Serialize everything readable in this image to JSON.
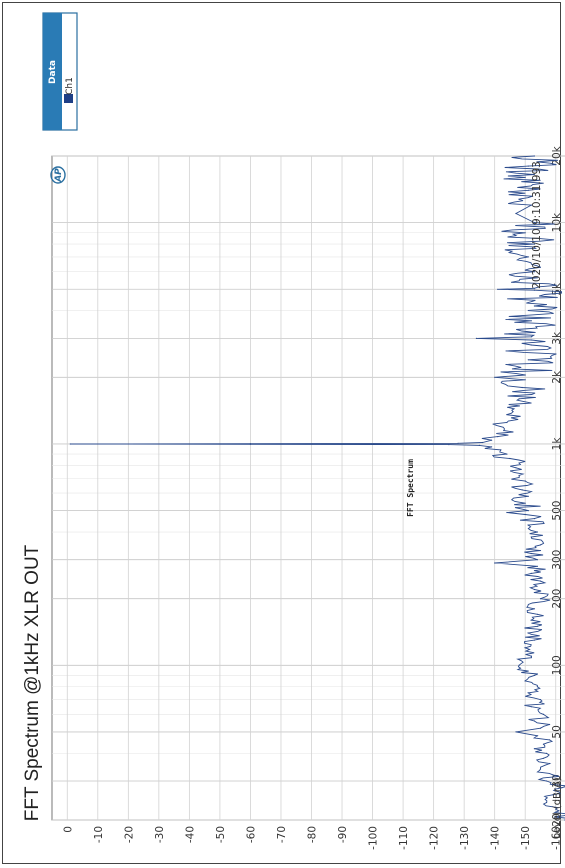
{
  "chart_data": {
    "type": "line",
    "title": "FFT Spectrum @1kHz XLR OUT",
    "subtitle": "FFT Spectrum",
    "timestamp": "2020/10/10 9:10:31.993",
    "logo": "AP",
    "ylabel": "Level (dBrA)",
    "xlabel": "",
    "x_scale": "log",
    "xlim": [
      20,
      20000
    ],
    "ylim": [
      -165,
      5
    ],
    "grid": true,
    "orientation": "rotated 90 degrees clockwise",
    "x_ticks": [
      {
        "v": 20,
        "label": "20"
      },
      {
        "v": 30,
        "label": "30"
      },
      {
        "v": 50,
        "label": "50"
      },
      {
        "v": 100,
        "label": "100"
      },
      {
        "v": 200,
        "label": "200"
      },
      {
        "v": 300,
        "label": "300"
      },
      {
        "v": 500,
        "label": "500"
      },
      {
        "v": 1000,
        "label": "1k"
      },
      {
        "v": 2000,
        "label": "2k"
      },
      {
        "v": 3000,
        "label": "3k"
      },
      {
        "v": 5000,
        "label": "5k"
      },
      {
        "v": 10000,
        "label": "10k"
      },
      {
        "v": 20000,
        "label": "20k"
      }
    ],
    "y_ticks": [
      {
        "v": 0,
        "label": "0"
      },
      {
        "v": -10,
        "label": "-10"
      },
      {
        "v": -20,
        "label": "-20"
      },
      {
        "v": -30,
        "label": "-30"
      },
      {
        "v": -40,
        "label": "-40"
      },
      {
        "v": -50,
        "label": "-50"
      },
      {
        "v": -60,
        "label": "-60"
      },
      {
        "v": -70,
        "label": "-70"
      },
      {
        "v": -80,
        "label": "-80"
      },
      {
        "v": -90,
        "label": "-90"
      },
      {
        "v": -100,
        "label": "-100"
      },
      {
        "v": -110,
        "label": "-110"
      },
      {
        "v": -120,
        "label": "-120"
      },
      {
        "v": -130,
        "label": "-130"
      },
      {
        "v": -140,
        "label": "-140"
      },
      {
        "v": -150,
        "label": "-150"
      },
      {
        "v": -160,
        "label": "-160"
      }
    ],
    "legend": {
      "title": "Data",
      "entries": [
        "Ch1"
      ],
      "position": "top-right"
    },
    "series": [
      {
        "name": "Ch1",
        "color": "#2a4a8c",
        "points": [
          [
            20,
            -163
          ],
          [
            22,
            -161
          ],
          [
            24,
            -157
          ],
          [
            26,
            -159
          ],
          [
            28,
            -162
          ],
          [
            30,
            -157
          ],
          [
            32,
            -159
          ],
          [
            34,
            -155
          ],
          [
            36,
            -158
          ],
          [
            38,
            -156
          ],
          [
            40,
            -157
          ],
          [
            42,
            -153
          ],
          [
            44,
            -156
          ],
          [
            46,
            -158
          ],
          [
            48,
            -154
          ],
          [
            50,
            -147
          ],
          [
            52,
            -155
          ],
          [
            54,
            -158
          ],
          [
            56,
            -153
          ],
          [
            60,
            -156
          ],
          [
            65,
            -152
          ],
          [
            70,
            -155
          ],
          [
            75,
            -151
          ],
          [
            80,
            -154
          ],
          [
            85,
            -150
          ],
          [
            90,
            -153
          ],
          [
            100,
            -148
          ],
          [
            110,
            -152
          ],
          [
            120,
            -150
          ],
          [
            130,
            -153
          ],
          [
            140,
            -151
          ],
          [
            150,
            -154
          ],
          [
            160,
            -152
          ],
          [
            170,
            -154
          ],
          [
            180,
            -153
          ],
          [
            200,
            -155
          ],
          [
            220,
            -153
          ],
          [
            240,
            -155
          ],
          [
            260,
            -152
          ],
          [
            280,
            -154
          ],
          [
            290,
            -140
          ],
          [
            300,
            -154
          ],
          [
            320,
            -152
          ],
          [
            350,
            -155
          ],
          [
            380,
            -152
          ],
          [
            400,
            -154
          ],
          [
            430,
            -151
          ],
          [
            460,
            -153
          ],
          [
            480,
            -150
          ],
          [
            490,
            -144
          ],
          [
            500,
            -151
          ],
          [
            540,
            -150
          ],
          [
            580,
            -151
          ],
          [
            620,
            -149
          ],
          [
            680,
            -150
          ],
          [
            720,
            -148
          ],
          [
            780,
            -147
          ],
          [
            820,
            -148
          ],
          [
            860,
            -145
          ],
          [
            900,
            -144
          ],
          [
            940,
            -142
          ],
          [
            970,
            -139
          ],
          [
            985,
            -135
          ],
          [
            993,
            -125
          ],
          [
            997,
            -60
          ],
          [
            1000,
            -1
          ],
          [
            1003,
            -60
          ],
          [
            1007,
            -128
          ],
          [
            1015,
            -136
          ],
          [
            1040,
            -139
          ],
          [
            1080,
            -141
          ],
          [
            1150,
            -143
          ],
          [
            1250,
            -144
          ],
          [
            1400,
            -146
          ],
          [
            1600,
            -148
          ],
          [
            1800,
            -149
          ],
          [
            1950,
            -150
          ],
          [
            2000,
            -140
          ],
          [
            2050,
            -150
          ],
          [
            2400,
            -151
          ],
          [
            2800,
            -152
          ],
          [
            2950,
            -152
          ],
          [
            3000,
            -134
          ],
          [
            3050,
            -152
          ],
          [
            3600,
            -152
          ],
          [
            4200,
            -153
          ],
          [
            4950,
            -153
          ],
          [
            5000,
            -141
          ],
          [
            5050,
            -153
          ],
          [
            6000,
            -153
          ],
          [
            7000,
            -151
          ],
          [
            8000,
            -153
          ],
          [
            9000,
            -150
          ],
          [
            10000,
            -153
          ],
          [
            11000,
            -147
          ],
          [
            12000,
            -152
          ],
          [
            14000,
            -151
          ],
          [
            16000,
            -150
          ],
          [
            18000,
            -151
          ],
          [
            20000,
            -153
          ]
        ]
      }
    ]
  }
}
